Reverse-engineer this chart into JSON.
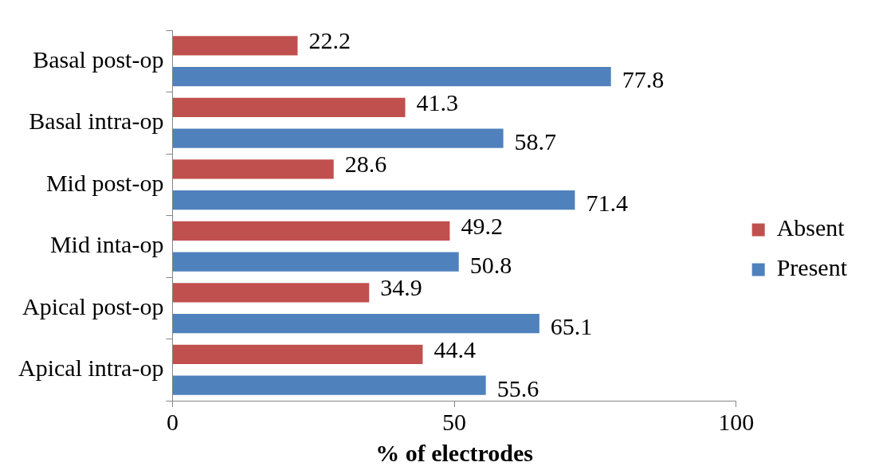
{
  "chart_data": {
    "type": "bar",
    "orientation": "horizontal",
    "xlabel": "% of electrodes",
    "categories": [
      "Basal post-op",
      "Basal intra-op",
      "Mid post-op",
      "Mid inta-op",
      "Apical post-op",
      "Apical intra-op"
    ],
    "series": [
      {
        "name": "Absent",
        "color": "#c0504d",
        "values": [
          22.2,
          41.3,
          28.6,
          49.2,
          34.9,
          44.4
        ]
      },
      {
        "name": "Present",
        "color": "#4f81bd",
        "values": [
          77.8,
          58.7,
          71.4,
          50.8,
          65.1,
          55.6
        ]
      }
    ],
    "xlim": [
      0,
      100
    ],
    "xticks": [
      0,
      50,
      100
    ],
    "grid": false,
    "legend": "right",
    "data_labels": true
  }
}
